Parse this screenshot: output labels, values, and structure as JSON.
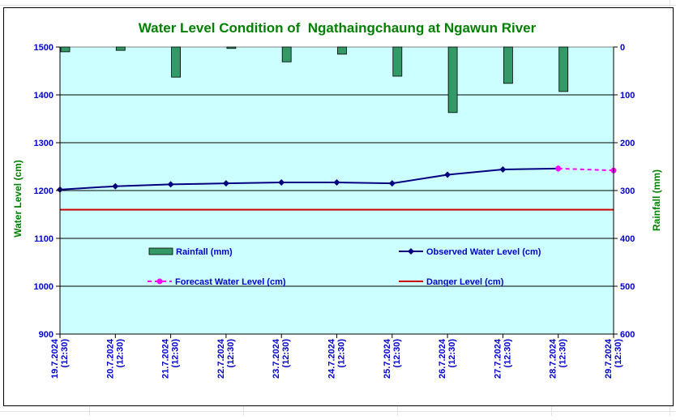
{
  "chart_data": {
    "type": "bar+line",
    "title": "Water Level Condition of  Ngathaingchaung at Ngawun River",
    "ylabel_left": "Water Level (cm)",
    "ylabel_right": "Rainfall (mm)",
    "ylim_left": [
      900,
      1500
    ],
    "yticks_left": [
      "900",
      "1000",
      "1100",
      "1200",
      "1300",
      "1400",
      "1500"
    ],
    "ylim_right": [
      0,
      600
    ],
    "right_axis_inverted": true,
    "yticks_right": [
      "0",
      "100",
      "200",
      "300",
      "400",
      "500",
      "600"
    ],
    "grid": "horizontal",
    "categories": [
      [
        "19.7.2024",
        "(12:30)"
      ],
      [
        "20.7.2024",
        "(12:30)"
      ],
      [
        "21.7.2024",
        "(12:30)"
      ],
      [
        "22.7.2024",
        "(12:30)"
      ],
      [
        "23.7.2024",
        "(12:30)"
      ],
      [
        "24.7.2024",
        "(12:30)"
      ],
      [
        "25.7.2024",
        "(12:30)"
      ],
      [
        "26.7.2024",
        "(12:30)"
      ],
      [
        "27.7.2024",
        "(12:30)"
      ],
      [
        "28.7.2024",
        "(12:30)"
      ],
      [
        "29.7.2024",
        "(12:30)"
      ]
    ],
    "rainfall": {
      "name": "Rainfall (mm)",
      "axis": "right",
      "color": "#339966",
      "values": [
        10,
        7,
        63,
        3,
        31,
        15,
        61,
        137,
        76,
        93,
        null
      ]
    },
    "observed": {
      "name": "Observed Water Level (cm)",
      "axis": "left",
      "color": "#000080",
      "values": [
        1202,
        1209,
        1213,
        1215,
        1217,
        1217,
        1215,
        1233,
        1244,
        1246,
        null
      ]
    },
    "forecast": {
      "name": "Forecast Water Level (cm)",
      "axis": "left",
      "color": "#ff00ff",
      "values": [
        null,
        null,
        null,
        null,
        null,
        null,
        null,
        null,
        null,
        1246,
        1242
      ]
    },
    "danger": {
      "name": "Danger Level (cm)",
      "axis": "left",
      "color": "#cc0000",
      "value": 1160
    },
    "legend_placement": "inside-plot-lower-half"
  },
  "colors": {
    "plot_background": "#ccffff",
    "title": "#008000",
    "axis_text": "#0000cc",
    "axis_label": "#008000"
  }
}
